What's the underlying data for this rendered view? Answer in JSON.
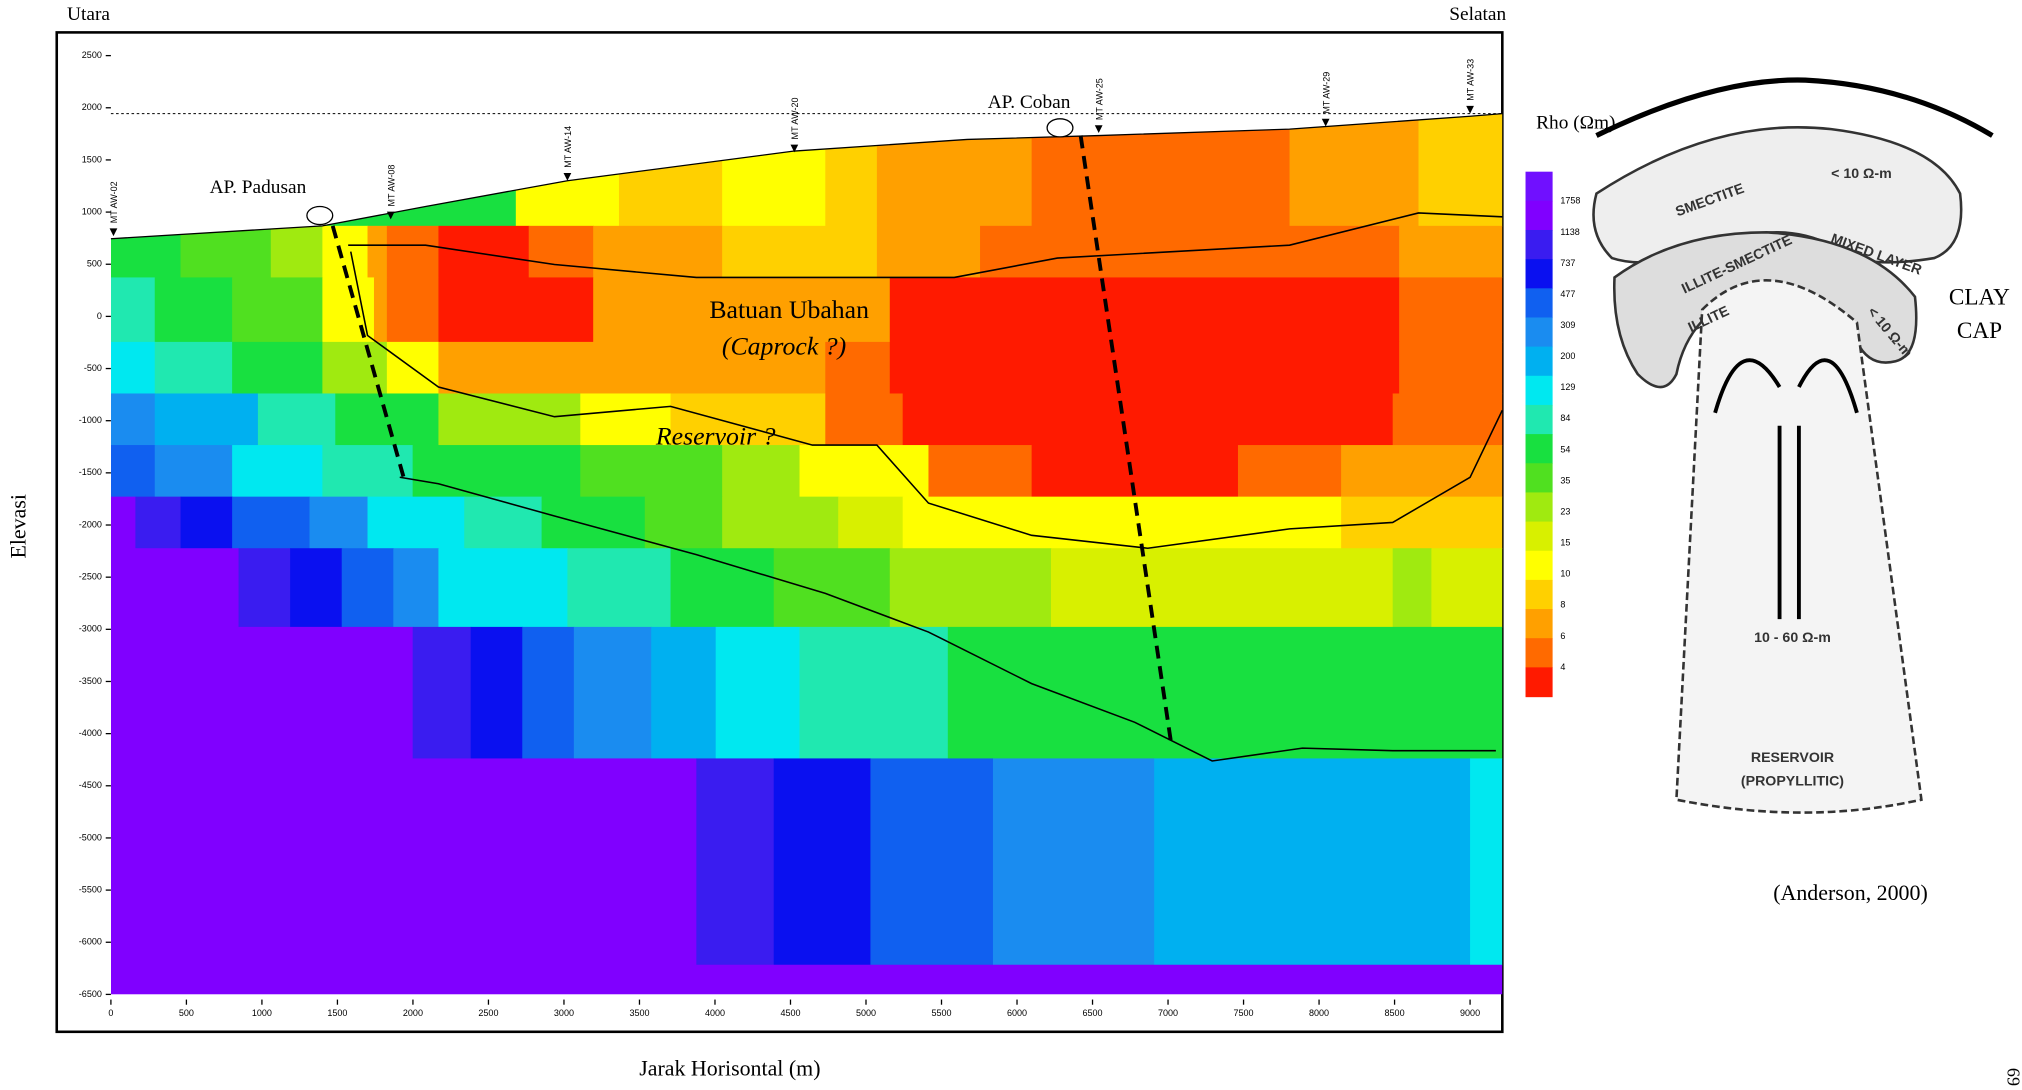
{
  "section": {
    "left_label": "Utara",
    "right_label": "Selatan",
    "y_axis_title": "Elevasi",
    "x_axis_title": "Jarak Horisontal (m)",
    "xticks": [
      0,
      500,
      1000,
      1500,
      2000,
      2500,
      3000,
      3500,
      4000,
      4500,
      5000,
      5500,
      6000,
      6500,
      7000,
      7500,
      8000,
      8500,
      9000
    ],
    "yticks": [
      2500,
      2000,
      1500,
      1000,
      500,
      0,
      -500,
      -1000,
      -1500,
      -2000,
      -2500,
      -3000,
      -3500,
      -4000,
      -4500,
      -5000,
      -5500,
      -6000,
      -6500
    ],
    "stations": [
      "MT AW-02",
      "MT AW-08",
      "MT AW-14",
      "MT AW-20",
      "MT AW-25",
      "MT AW-29",
      "MT AW-33"
    ],
    "hot_springs": [
      "AP. Padusan",
      "AP. Coban"
    ],
    "caprock_label": "Batuan Ubahan",
    "caprock_note": "(Caprock ?)",
    "reservoir_label": "Reservoir ?"
  },
  "colorbar": {
    "title": "Rho (Ωm)",
    "labels": [
      1758,
      1138,
      737,
      477,
      309,
      200,
      129,
      84,
      54,
      35,
      23,
      15,
      10,
      8,
      6,
      4
    ]
  },
  "model": {
    "smectite": "SMECTITE",
    "resist_top": "< 10 Ω-m",
    "mixed": "MIXED LAYER",
    "illite_smectite": "ILLITE-SMECTITE",
    "illite": "ILLITE",
    "resist_side": "< 10 Ω-m",
    "clay": "CLAY",
    "cap": "CAP",
    "resist_res": "10 - 60 Ω-m",
    "reservoir": "RESERVOIR",
    "propyllitic": "(PROPYLLITIC)"
  },
  "citation": "(Anderson, 2000)",
  "page_number": "69"
}
